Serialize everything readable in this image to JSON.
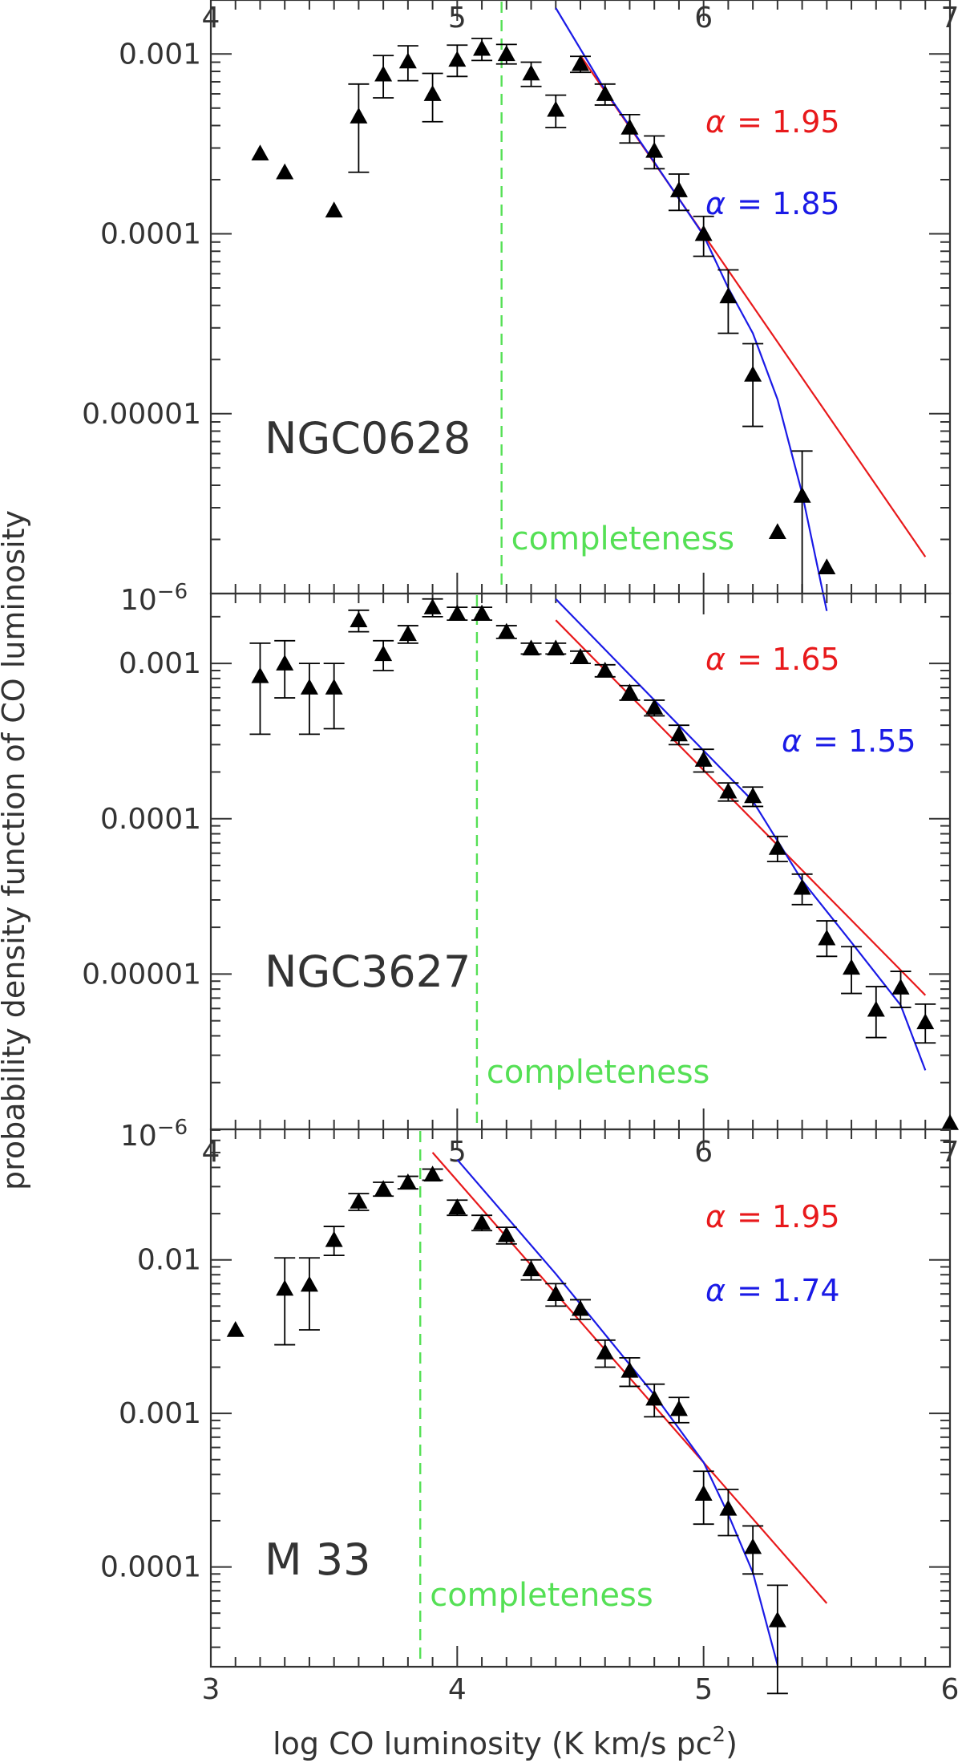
{
  "figure": {
    "ylabel": "probability density function of CO luminosity",
    "xlabel_main": "log CO luminosity (K km/s pc",
    "xlabel_sup": "2",
    "xlabel_close": ")"
  },
  "colors": {
    "red_fit": "#e8191b",
    "blue_fit": "#1a1ae6",
    "completeness": "#55e055",
    "axis": "#333333",
    "marker": "#000000"
  },
  "chart_data": [
    {
      "type": "scatter",
      "name": "NGC0628",
      "xlim": [
        4,
        7
      ],
      "ylim_log10": [
        -6,
        -2.7
      ],
      "xticks": [
        4,
        5,
        6,
        7
      ],
      "xtick_labels": [
        "4",
        "5",
        "6",
        "7"
      ],
      "x_labels_side": "top",
      "yticks_log10": [
        -6,
        -5,
        -4,
        -3
      ],
      "ytick_labels": [
        "",
        "0.00001",
        "0.0001",
        "0.001"
      ],
      "corner_label": {
        "base": "10",
        "exp": "−6"
      },
      "completeness_x": 5.18,
      "completeness_label": "completeness",
      "points": [
        {
          "x": 4.2,
          "y": 0.00028
        },
        {
          "x": 4.3,
          "y": 0.00022
        },
        {
          "x": 4.5,
          "y": 0.000135
        },
        {
          "x": 4.6,
          "y": 0.00045,
          "lo": 0.00022,
          "hi": 0.00068
        },
        {
          "x": 4.7,
          "y": 0.00077,
          "lo": 0.00057,
          "hi": 0.00098
        },
        {
          "x": 4.8,
          "y": 0.00091,
          "lo": 0.00071,
          "hi": 0.00111
        },
        {
          "x": 4.9,
          "y": 0.0006,
          "lo": 0.00042,
          "hi": 0.00078
        },
        {
          "x": 5.0,
          "y": 0.00093,
          "lo": 0.00075,
          "hi": 0.00112
        },
        {
          "x": 5.1,
          "y": 0.00107,
          "lo": 0.00092,
          "hi": 0.00122
        },
        {
          "x": 5.2,
          "y": 0.001,
          "lo": 0.00088,
          "hi": 0.00113
        },
        {
          "x": 5.3,
          "y": 0.00078,
          "lo": 0.00066,
          "hi": 0.0009
        },
        {
          "x": 5.4,
          "y": 0.00049,
          "lo": 0.00039,
          "hi": 0.00059
        },
        {
          "x": 5.5,
          "y": 0.00088,
          "lo": 0.00079,
          "hi": 0.00097
        },
        {
          "x": 5.6,
          "y": 0.0006,
          "lo": 0.00052,
          "hi": 0.00068
        },
        {
          "x": 5.7,
          "y": 0.00039,
          "lo": 0.00032,
          "hi": 0.00046
        },
        {
          "x": 5.8,
          "y": 0.00029,
          "lo": 0.00023,
          "hi": 0.00035
        },
        {
          "x": 5.9,
          "y": 0.000175,
          "lo": 0.000135,
          "hi": 0.000215
        },
        {
          "x": 6.0,
          "y": 0.0001,
          "lo": 7.5e-05,
          "hi": 0.000125
        },
        {
          "x": 6.1,
          "y": 4.5e-05,
          "lo": 2.8e-05,
          "hi": 6.3e-05
        },
        {
          "x": 6.2,
          "y": 1.65e-05,
          "lo": 8.5e-06,
          "hi": 2.45e-05
        },
        {
          "x": 6.3,
          "y": 2.2e-06
        },
        {
          "x": 6.4,
          "y": 3.5e-06,
          "lo": 1e-06,
          "hi": 6.2e-06
        },
        {
          "x": 6.5,
          "y": 1.4e-06
        }
      ],
      "series": [
        {
          "name": "α = 1.95",
          "color": "#e8191b",
          "x": [
            5.5,
            6.9
          ],
          "y": [
            0.00098,
            1.6e-06
          ]
        },
        {
          "name": "α = 1.85",
          "color": "#1a1ae6",
          "x": [
            5.4,
            5.6,
            5.8,
            6.0,
            6.1,
            6.2,
            6.3,
            6.4,
            6.5
          ],
          "y": [
            0.0018,
            0.00063,
            0.00025,
            9.8e-05,
            5e-05,
            2.8e-05,
            1.2e-05,
            3.6e-06,
            8e-07
          ]
        }
      ],
      "alpha_labels": [
        {
          "symbol": "α",
          "text": "= 1.95",
          "color": "#e8191b"
        },
        {
          "symbol": "α",
          "text": "= 1.85",
          "color": "#1a1ae6"
        }
      ]
    },
    {
      "type": "scatter",
      "name": "NGC3627",
      "xlim": [
        4,
        7
      ],
      "ylim_log10": [
        -6,
        -2.55
      ],
      "xticks": [
        4,
        5,
        6,
        7
      ],
      "xtick_labels": [
        "4",
        "5",
        "6",
        "7"
      ],
      "x_labels_side": "bottom",
      "yticks_log10": [
        -6,
        -5,
        -4,
        -3
      ],
      "ytick_labels": [
        "",
        "0.00001",
        "0.0001",
        "0.001"
      ],
      "corner_label": {
        "base": "10",
        "exp": "−6"
      },
      "completeness_x": 5.08,
      "completeness_label": "completeness",
      "points": [
        {
          "x": 4.2,
          "y": 0.00083,
          "lo": 0.00035,
          "hi": 0.00135
        },
        {
          "x": 4.3,
          "y": 0.001,
          "lo": 0.0006,
          "hi": 0.0014
        },
        {
          "x": 4.4,
          "y": 0.0007,
          "lo": 0.00035,
          "hi": 0.001
        },
        {
          "x": 4.5,
          "y": 0.0007,
          "lo": 0.00038,
          "hi": 0.001
        },
        {
          "x": 4.6,
          "y": 0.0019,
          "lo": 0.0016,
          "hi": 0.0022
        },
        {
          "x": 4.7,
          "y": 0.00115,
          "lo": 0.0009,
          "hi": 0.0014
        },
        {
          "x": 4.8,
          "y": 0.00155,
          "lo": 0.00135,
          "hi": 0.00175
        },
        {
          "x": 4.9,
          "y": 0.0023,
          "lo": 0.002,
          "hi": 0.0026
        },
        {
          "x": 5.0,
          "y": 0.0021,
          "lo": 0.0019,
          "hi": 0.0023
        },
        {
          "x": 5.1,
          "y": 0.0021,
          "lo": 0.0019,
          "hi": 0.0023
        },
        {
          "x": 5.2,
          "y": 0.0016,
          "lo": 0.00145,
          "hi": 0.00175
        },
        {
          "x": 5.3,
          "y": 0.00125,
          "lo": 0.00115,
          "hi": 0.00135
        },
        {
          "x": 5.4,
          "y": 0.00125,
          "lo": 0.00115,
          "hi": 0.00135
        },
        {
          "x": 5.5,
          "y": 0.0011,
          "lo": 0.001,
          "hi": 0.0012
        },
        {
          "x": 5.6,
          "y": 0.0009,
          "lo": 0.00082,
          "hi": 0.00098
        },
        {
          "x": 5.7,
          "y": 0.00065,
          "lo": 0.00058,
          "hi": 0.00072
        },
        {
          "x": 5.8,
          "y": 0.00052,
          "lo": 0.00046,
          "hi": 0.00058
        },
        {
          "x": 5.9,
          "y": 0.00035,
          "lo": 0.0003,
          "hi": 0.0004
        },
        {
          "x": 6.0,
          "y": 0.00024,
          "lo": 0.0002,
          "hi": 0.00028
        },
        {
          "x": 6.1,
          "y": 0.00015,
          "lo": 0.00013,
          "hi": 0.00017
        },
        {
          "x": 6.2,
          "y": 0.00014,
          "lo": 0.00012,
          "hi": 0.00016
        },
        {
          "x": 6.3,
          "y": 6.5e-05,
          "lo": 5.3e-05,
          "hi": 7.7e-05
        },
        {
          "x": 6.4,
          "y": 3.6e-05,
          "lo": 2.8e-05,
          "hi": 4.4e-05
        },
        {
          "x": 6.5,
          "y": 1.7e-05,
          "lo": 1.3e-05,
          "hi": 2.2e-05
        },
        {
          "x": 6.6,
          "y": 1.1e-05,
          "lo": 7.5e-06,
          "hi": 1.5e-05
        },
        {
          "x": 6.7,
          "y": 5.9e-06,
          "lo": 3.9e-06,
          "hi": 8.3e-06
        },
        {
          "x": 6.8,
          "y": 8.2e-06,
          "lo": 6.1e-06,
          "hi": 1.04e-05
        },
        {
          "x": 6.9,
          "y": 4.9e-06,
          "lo": 3.6e-06,
          "hi": 6.4e-06
        },
        {
          "x": 7.0,
          "y": 1.1e-06
        }
      ],
      "series": [
        {
          "name": "α = 1.65",
          "color": "#e8191b",
          "x": [
            5.4,
            6.9
          ],
          "y": [
            0.0019,
            7.3e-06
          ]
        },
        {
          "name": "α = 1.55",
          "color": "#1a1ae6",
          "x": [
            5.4,
            5.8,
            6.2,
            6.4,
            6.6,
            6.8,
            6.9
          ],
          "y": [
            0.0026,
            0.00058,
            0.00013,
            4e-05,
            1.6e-05,
            6.3e-06,
            2.4e-06
          ]
        }
      ],
      "alpha_labels": [
        {
          "symbol": "α",
          "text": "= 1.65",
          "color": "#e8191b"
        },
        {
          "symbol": "α",
          "text": "= 1.55",
          "color": "#1a1ae6"
        }
      ]
    },
    {
      "type": "scatter",
      "name": "M 33",
      "xlim": [
        3,
        6
      ],
      "ylim_log10": [
        -4.65,
        -1.15
      ],
      "xticks": [
        3,
        4,
        5,
        6
      ],
      "xtick_labels": [
        "3",
        "4",
        "5",
        "6"
      ],
      "x_labels_side": "bottom",
      "yticks_log10": [
        -4,
        -3,
        -2
      ],
      "ytick_labels": [
        "0.0001",
        "0.001",
        "0.01"
      ],
      "completeness_x": 3.85,
      "completeness_label": "completeness",
      "points": [
        {
          "x": 3.1,
          "y": 0.0035
        },
        {
          "x": 3.3,
          "y": 0.0065,
          "lo": 0.0028,
          "hi": 0.0103
        },
        {
          "x": 3.4,
          "y": 0.0069,
          "lo": 0.0035,
          "hi": 0.0103
        },
        {
          "x": 3.5,
          "y": 0.0135,
          "lo": 0.0107,
          "hi": 0.0165
        },
        {
          "x": 3.6,
          "y": 0.024,
          "lo": 0.021,
          "hi": 0.027
        },
        {
          "x": 3.7,
          "y": 0.029,
          "lo": 0.026,
          "hi": 0.032
        },
        {
          "x": 3.8,
          "y": 0.032,
          "lo": 0.029,
          "hi": 0.035
        },
        {
          "x": 3.9,
          "y": 0.036,
          "lo": 0.033,
          "hi": 0.039
        },
        {
          "x": 4.0,
          "y": 0.022,
          "lo": 0.0195,
          "hi": 0.0245
        },
        {
          "x": 4.1,
          "y": 0.0175,
          "lo": 0.0155,
          "hi": 0.0195
        },
        {
          "x": 4.2,
          "y": 0.0145,
          "lo": 0.0127,
          "hi": 0.0163
        },
        {
          "x": 4.3,
          "y": 0.0087,
          "lo": 0.0074,
          "hi": 0.01
        },
        {
          "x": 4.4,
          "y": 0.006,
          "lo": 0.005,
          "hi": 0.007
        },
        {
          "x": 4.5,
          "y": 0.0048,
          "lo": 0.0041,
          "hi": 0.0055
        },
        {
          "x": 4.6,
          "y": 0.0025,
          "lo": 0.002,
          "hi": 0.003
        },
        {
          "x": 4.7,
          "y": 0.0019,
          "lo": 0.0015,
          "hi": 0.0023
        },
        {
          "x": 4.8,
          "y": 0.00125,
          "lo": 0.00095,
          "hi": 0.00155
        },
        {
          "x": 4.9,
          "y": 0.00107,
          "lo": 0.00087,
          "hi": 0.00127
        },
        {
          "x": 5.0,
          "y": 0.0003,
          "lo": 0.00019,
          "hi": 0.00042
        },
        {
          "x": 5.1,
          "y": 0.00024,
          "lo": 0.00016,
          "hi": 0.00032
        },
        {
          "x": 5.2,
          "y": 0.000135,
          "lo": 9e-05,
          "hi": 0.000185
        },
        {
          "x": 5.3,
          "y": 4.5e-05,
          "lo": 1.5e-05,
          "hi": 7.6e-05
        }
      ],
      "series": [
        {
          "name": "α = 1.95",
          "color": "#e8191b",
          "x": [
            3.9,
            5.5
          ],
          "y": [
            0.05,
            5.8e-05
          ]
        },
        {
          "name": "α = 1.74",
          "color": "#1a1ae6",
          "x": [
            4.0,
            4.4,
            4.8,
            5.0,
            5.1,
            5.2,
            5.3
          ],
          "y": [
            0.045,
            0.0081,
            0.00132,
            0.00048,
            0.00022,
            9.2e-05,
            2.3e-05
          ]
        }
      ],
      "alpha_labels": [
        {
          "symbol": "α",
          "text": "= 1.95",
          "color": "#e8191b"
        },
        {
          "symbol": "α",
          "text": "= 1.74",
          "color": "#1a1ae6"
        }
      ]
    }
  ]
}
